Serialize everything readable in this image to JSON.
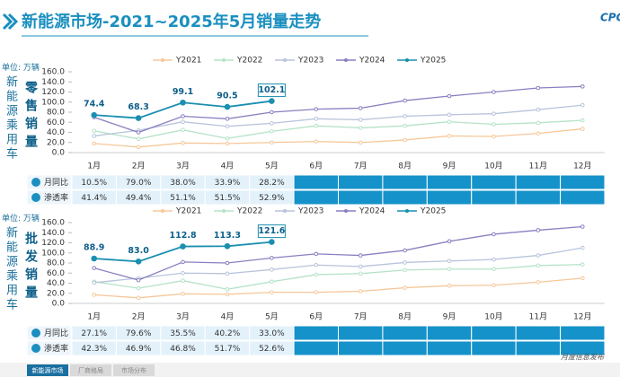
{
  "header": {
    "title": "新能源市场-2021~2025年5月销量走势",
    "logo": "CPCA"
  },
  "chart_data": [
    {
      "type": "line",
      "unit": "单位: 万辆",
      "side_label": "新能源乘用车",
      "side_title": "零售销量",
      "categories": [
        "1月",
        "2月",
        "3月",
        "4月",
        "5月",
        "6月",
        "7月",
        "8月",
        "9月",
        "10月",
        "11月",
        "12月"
      ],
      "ylim": [
        0,
        160
      ],
      "yticks": [
        {
          "value": 0,
          "label": "0.0"
        },
        {
          "value": 20,
          "label": "20.0"
        },
        {
          "value": 40,
          "label": "40.0"
        },
        {
          "value": 60,
          "label": "60.0"
        },
        {
          "value": 80,
          "label": "80.0"
        },
        {
          "value": 100,
          "label": "100.0"
        },
        {
          "value": 120,
          "label": "120.0"
        },
        {
          "value": 140,
          "label": "140.0"
        },
        {
          "value": 160,
          "label": "160.0"
        }
      ],
      "grid": false,
      "series": [
        {
          "name": "Y2021",
          "color": "#f5c89a",
          "values": [
            18,
            11,
            19,
            18,
            20,
            22,
            20,
            25,
            33,
            32,
            38,
            47
          ]
        },
        {
          "name": "Y2022",
          "color": "#b5e3c8",
          "values": [
            43,
            27,
            45,
            28,
            42,
            53,
            49,
            53,
            61,
            56,
            59,
            64
          ]
        },
        {
          "name": "Y2023",
          "color": "#b8c4dc",
          "values": [
            33,
            44,
            61,
            52,
            58,
            67,
            65,
            72,
            75,
            77,
            85,
            94
          ]
        },
        {
          "name": "Y2024",
          "color": "#8a7fc0",
          "values": [
            70,
            40,
            72,
            67,
            80,
            86,
            88,
            103,
            112,
            120,
            128,
            131
          ]
        },
        {
          "name": "Y2025",
          "color": "#1a8fb0",
          "values": [
            74.4,
            68.3,
            99.1,
            90.5,
            102.1,
            null,
            null,
            null,
            null,
            null,
            null,
            null
          ],
          "value_labels": [
            "74.4",
            "68.3",
            "99.1",
            "90.5",
            "102.1",
            null,
            null,
            null,
            null,
            null,
            null,
            null
          ]
        }
      ],
      "table": {
        "rows": [
          {
            "label": "月同比",
            "values": [
              "10.5%",
              "79.0%",
              "38.0%",
              "33.9%",
              "28.2%"
            ]
          },
          {
            "label": "渗透率",
            "values": [
              "41.4%",
              "49.4%",
              "51.1%",
              "51.5%",
              "52.9%"
            ]
          }
        ]
      }
    },
    {
      "type": "line",
      "unit": "单位: 万辆",
      "side_label": "新能源乘用车",
      "side_title": "批发销量",
      "categories": [
        "1月",
        "2月",
        "3月",
        "4月",
        "5月",
        "6月",
        "7月",
        "8月",
        "9月",
        "10月",
        "11月",
        "12月"
      ],
      "ylim": [
        0,
        160
      ],
      "yticks": [
        {
          "value": 0,
          "label": "0.0"
        },
        {
          "value": 20,
          "label": "20.0"
        },
        {
          "value": 40,
          "label": "40.0"
        },
        {
          "value": 60,
          "label": "60.0"
        },
        {
          "value": 80,
          "label": "80.0"
        },
        {
          "value": 100,
          "label": "100.0"
        },
        {
          "value": 120,
          "label": "120.0"
        },
        {
          "value": 140,
          "label": "140.0"
        },
        {
          "value": 160,
          "label": "160.0"
        }
      ],
      "grid": false,
      "series": [
        {
          "name": "Y2021",
          "color": "#f5c89a",
          "values": [
            17,
            11,
            19,
            18,
            22,
            22,
            24,
            31,
            35,
            36,
            42,
            50
          ]
        },
        {
          "name": "Y2022",
          "color": "#b5e3c8",
          "values": [
            43,
            30,
            45,
            28,
            43,
            57,
            59,
            66,
            68,
            68,
            75,
            77
          ]
        },
        {
          "name": "Y2023",
          "color": "#b8c4dc",
          "values": [
            41,
            50,
            60,
            59,
            67,
            76,
            73,
            81,
            84,
            87,
            95,
            110
          ]
        },
        {
          "name": "Y2024",
          "color": "#8a7fc0",
          "values": [
            70,
            46,
            82,
            80,
            90,
            98,
            95,
            105,
            123,
            137,
            145,
            152
          ]
        },
        {
          "name": "Y2025",
          "color": "#1a8fb0",
          "values": [
            88.9,
            83.0,
            112.8,
            113.3,
            121.6,
            null,
            null,
            null,
            null,
            null,
            null,
            null
          ],
          "value_labels": [
            "88.9",
            "83.0",
            "112.8",
            "113.3",
            "121.6",
            null,
            null,
            null,
            null,
            null,
            null,
            null
          ]
        }
      ],
      "table": {
        "rows": [
          {
            "label": "月同比",
            "values": [
              "27.1%",
              "79.6%",
              "35.5%",
              "40.2%",
              "33.0%"
            ]
          },
          {
            "label": "渗透率",
            "values": [
              "42.3%",
              "46.9%",
              "46.8%",
              "51.7%",
              "52.6%"
            ]
          }
        ]
      }
    }
  ],
  "footer": {
    "tabs": [
      "新能源市场",
      "厂商格局",
      "市场分布"
    ],
    "note": "月度信息发布"
  }
}
